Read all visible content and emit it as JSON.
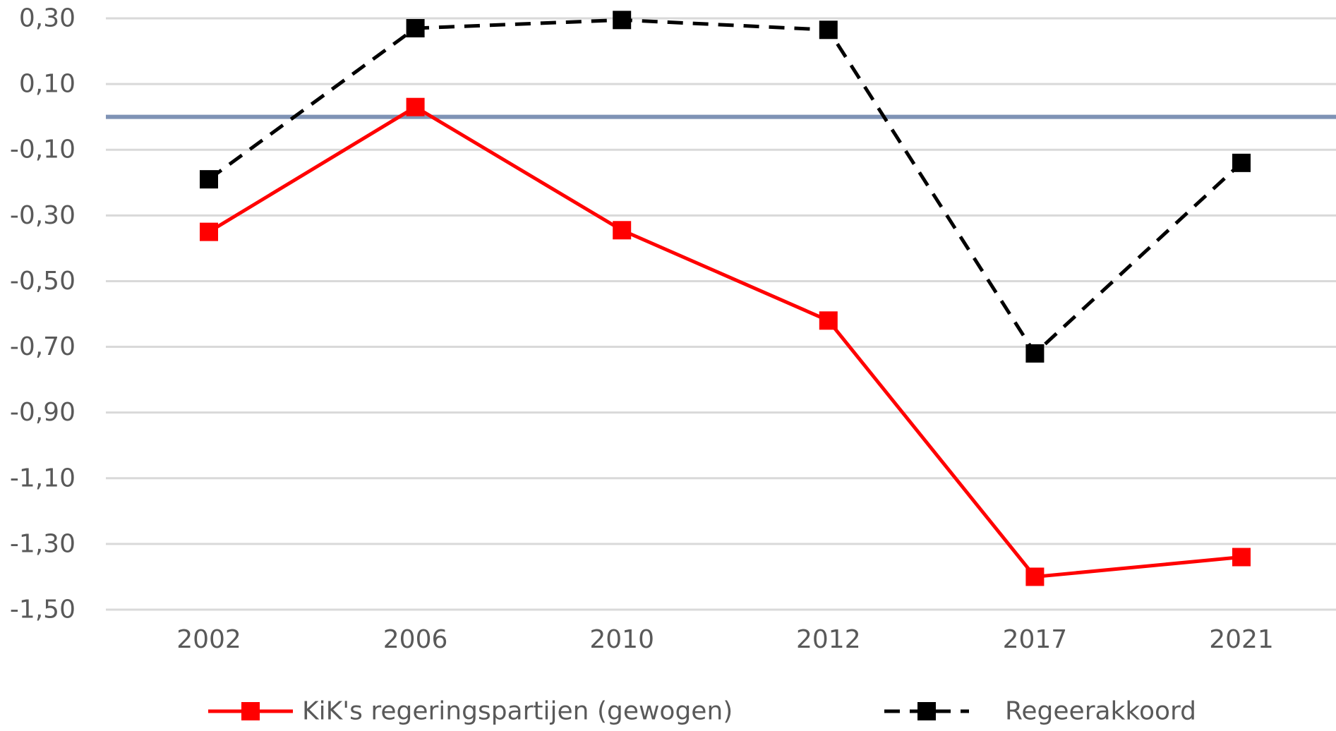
{
  "chart_data": {
    "type": "line",
    "categories": [
      "2002",
      "2006",
      "2010",
      "2012",
      "2017",
      "2021"
    ],
    "ylim": [
      -1.5,
      0.3
    ],
    "yticks": [
      0.3,
      0.1,
      -0.1,
      -0.3,
      -0.5,
      -0.7,
      -0.9,
      -1.1,
      -1.3,
      -1.5
    ],
    "ytick_labels": [
      "0,30",
      "0,10",
      "-0,10",
      "-0,30",
      "-0,50",
      "-0,70",
      "-0,90",
      "-1,10",
      "-1,30",
      "-1,50"
    ],
    "grid": true,
    "reference_line": {
      "y": 0.0,
      "color": "#7f93b5"
    },
    "legend_position": "bottom",
    "series": [
      {
        "name": "KiK's regeringspartijen (gewogen)",
        "values": [
          -0.35,
          0.03,
          -0.345,
          -0.62,
          -1.4,
          -1.34
        ],
        "color": "#ff0000",
        "line_style": "solid",
        "marker": "square"
      },
      {
        "name": "Regeerakkoord",
        "values": [
          -0.19,
          0.27,
          0.295,
          0.265,
          -0.72,
          -0.14
        ],
        "color": "#000000",
        "line_style": "dashed",
        "marker": "square"
      }
    ]
  }
}
